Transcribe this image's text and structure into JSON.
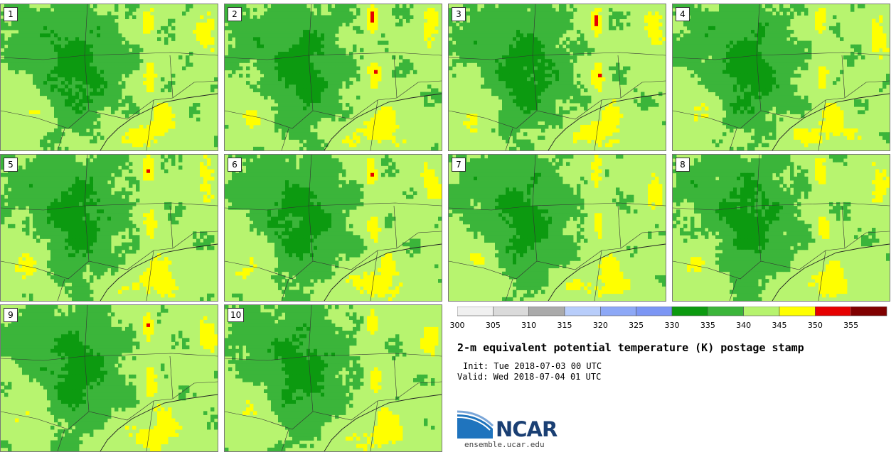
{
  "chart_data": {
    "type": "heatmap",
    "title": "2-m equivalent potential temperature (K) postage stamp",
    "init_label": "Init: Tue 2018-07-03 00 UTC",
    "valid_label": "Valid: Wed 2018-07-04 01 UTC",
    "members": [
      "1",
      "2",
      "3",
      "4",
      "5",
      "6",
      "7",
      "8",
      "9",
      "10"
    ],
    "colorbar": {
      "bounds": [
        300,
        305,
        310,
        315,
        320,
        325,
        330,
        335,
        340,
        345,
        350,
        355,
        360
      ],
      "tick_labels": [
        "300",
        "305",
        "310",
        "315",
        "320",
        "325",
        "330",
        "335",
        "340",
        "345",
        "350",
        "355"
      ],
      "colors": [
        "#f0f0f0",
        "#dadada",
        "#aaaaaa",
        "#b8cdfa",
        "#8da8f6",
        "#7c96f4",
        "#0c9a10",
        "#3bb53a",
        "#b6f36e",
        "#ffff00",
        "#e60000",
        "#800000"
      ]
    },
    "units": "K"
  },
  "logo": {
    "name": "NCAR",
    "url": "ensemble.ucar.edu"
  }
}
